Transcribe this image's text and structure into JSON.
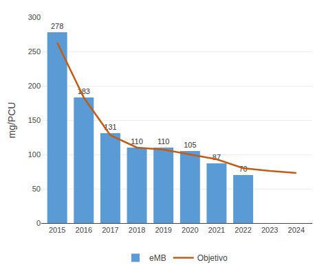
{
  "chart_data": {
    "type": "bar",
    "x": [
      2015,
      2016,
      2017,
      2018,
      2019,
      2020,
      2021,
      2022,
      2023,
      2024
    ],
    "series": [
      {
        "name": "eMB",
        "type": "bar",
        "color": "#5B9BD5",
        "data_labels": true,
        "values": [
          278,
          183,
          131,
          110,
          110,
          105,
          87,
          70,
          null,
          null
        ]
      },
      {
        "name": "Objetivo",
        "type": "line",
        "color": "#C55A11",
        "values": [
          263,
          183,
          128,
          110,
          107,
          100,
          93,
          80,
          76,
          73
        ]
      }
    ],
    "ylabel": "mg/PCU",
    "xlim": [
      2014.4,
      2024.6
    ],
    "xticks": [
      2015,
      2016,
      2017,
      2018,
      2019,
      2020,
      2021,
      2022,
      2023,
      2024
    ],
    "ylim": [
      0,
      300
    ],
    "yticks": [
      0,
      50,
      100,
      150,
      200,
      250,
      300
    ],
    "grid": true,
    "legend": "bottom"
  }
}
